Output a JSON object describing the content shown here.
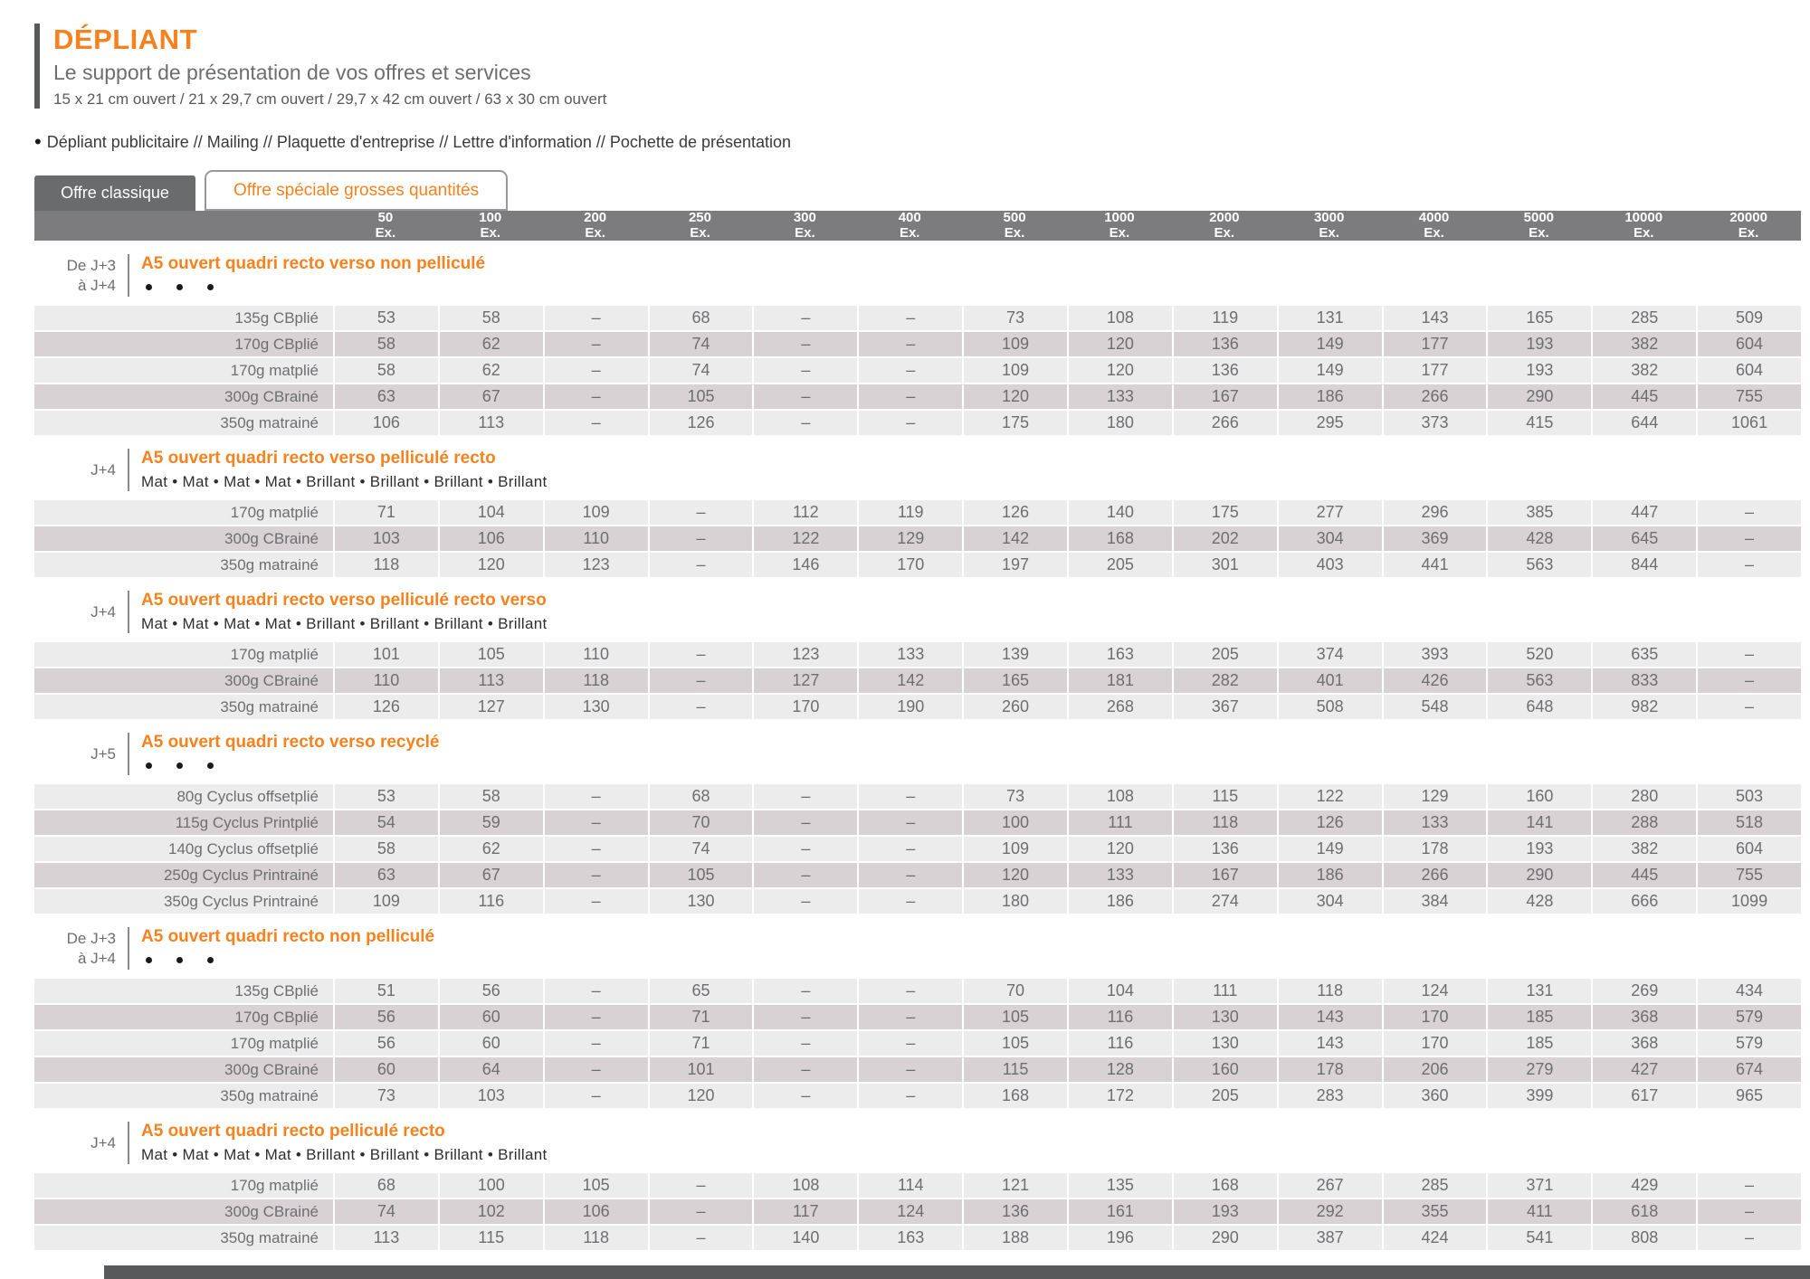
{
  "header": {
    "title": "DÉPLIANT",
    "subtitle": "Le support de présentation de vos offres et services",
    "formats": "15 x 21 cm ouvert / 21 x 29,7 cm ouvert / 29,7 x 42 cm ouvert / 63 x 30 cm ouvert",
    "uses_bullet": "•",
    "uses": "Dépliant publicitaire // Mailing // Plaquette d'entreprise // Lettre d'information // Pochette de présentation"
  },
  "tabs": [
    {
      "label": "Offre classique",
      "active": true
    },
    {
      "label": "Offre spéciale grosses quantités",
      "active": false
    }
  ],
  "columns": [
    "50",
    "100",
    "200",
    "250",
    "300",
    "400",
    "500",
    "1000",
    "2000",
    "3000",
    "4000",
    "5000",
    "10000",
    "20000"
  ],
  "column_unit": "Ex.",
  "sections": [
    {
      "delay": [
        "De J+3",
        "à J+4"
      ],
      "title": "A5 ouvert quadri recto verso non pelliculé",
      "finishes": {
        "type": "dots"
      },
      "rows": [
        {
          "label": "135g CBplié",
          "values": [
            "53",
            "58",
            "–",
            "68",
            "–",
            "–",
            "73",
            "108",
            "119",
            "131",
            "143",
            "165",
            "285",
            "509"
          ]
        },
        {
          "label": "170g CBplié",
          "values": [
            "58",
            "62",
            "–",
            "74",
            "–",
            "–",
            "109",
            "120",
            "136",
            "149",
            "177",
            "193",
            "382",
            "604"
          ]
        },
        {
          "label": "170g matplié",
          "values": [
            "58",
            "62",
            "–",
            "74",
            "–",
            "–",
            "109",
            "120",
            "136",
            "149",
            "177",
            "193",
            "382",
            "604"
          ]
        },
        {
          "label": "300g CBrainé",
          "values": [
            "63",
            "67",
            "–",
            "105",
            "–",
            "–",
            "120",
            "133",
            "167",
            "186",
            "266",
            "290",
            "445",
            "755"
          ]
        },
        {
          "label": "350g matrainé",
          "values": [
            "106",
            "113",
            "–",
            "126",
            "–",
            "–",
            "175",
            "180",
            "266",
            "295",
            "373",
            "415",
            "644",
            "1061"
          ]
        }
      ]
    },
    {
      "delay": [
        "J+4"
      ],
      "title": "A5 ouvert quadri recto verso pelliculé recto",
      "finishes": {
        "type": "text",
        "value": "Mat • Mat • Mat • Mat • Brillant • Brillant • Brillant • Brillant"
      },
      "rows": [
        {
          "label": "170g matplié",
          "values": [
            "71",
            "104",
            "109",
            "–",
            "112",
            "119",
            "126",
            "140",
            "175",
            "277",
            "296",
            "385",
            "447",
            "–"
          ]
        },
        {
          "label": "300g CBrainé",
          "values": [
            "103",
            "106",
            "110",
            "–",
            "122",
            "129",
            "142",
            "168",
            "202",
            "304",
            "369",
            "428",
            "645",
            "–"
          ]
        },
        {
          "label": "350g matrainé",
          "values": [
            "118",
            "120",
            "123",
            "–",
            "146",
            "170",
            "197",
            "205",
            "301",
            "403",
            "441",
            "563",
            "844",
            "–"
          ]
        }
      ]
    },
    {
      "delay": [
        "J+4"
      ],
      "title": "A5 ouvert quadri recto verso pelliculé recto verso",
      "finishes": {
        "type": "text",
        "value": "Mat • Mat • Mat • Mat • Brillant • Brillant • Brillant • Brillant"
      },
      "rows": [
        {
          "label": "170g matplié",
          "values": [
            "101",
            "105",
            "110",
            "–",
            "123",
            "133",
            "139",
            "163",
            "205",
            "374",
            "393",
            "520",
            "635",
            "–"
          ]
        },
        {
          "label": "300g CBrainé",
          "values": [
            "110",
            "113",
            "118",
            "–",
            "127",
            "142",
            "165",
            "181",
            "282",
            "401",
            "426",
            "563",
            "833",
            "–"
          ]
        },
        {
          "label": "350g matrainé",
          "values": [
            "126",
            "127",
            "130",
            "–",
            "170",
            "190",
            "260",
            "268",
            "367",
            "508",
            "548",
            "648",
            "982",
            "–"
          ]
        }
      ]
    },
    {
      "delay": [
        "J+5"
      ],
      "title": "A5 ouvert quadri recto verso recyclé",
      "finishes": {
        "type": "dots"
      },
      "rows": [
        {
          "label": "80g Cyclus offsetplié",
          "values": [
            "53",
            "58",
            "–",
            "68",
            "–",
            "–",
            "73",
            "108",
            "115",
            "122",
            "129",
            "160",
            "280",
            "503"
          ]
        },
        {
          "label": "115g Cyclus Printplié",
          "values": [
            "54",
            "59",
            "–",
            "70",
            "–",
            "–",
            "100",
            "111",
            "118",
            "126",
            "133",
            "141",
            "288",
            "518"
          ]
        },
        {
          "label": "140g Cyclus offsetplié",
          "values": [
            "58",
            "62",
            "–",
            "74",
            "–",
            "–",
            "109",
            "120",
            "136",
            "149",
            "178",
            "193",
            "382",
            "604"
          ]
        },
        {
          "label": "250g Cyclus Printrainé",
          "values": [
            "63",
            "67",
            "–",
            "105",
            "–",
            "–",
            "120",
            "133",
            "167",
            "186",
            "266",
            "290",
            "445",
            "755"
          ]
        },
        {
          "label": "350g Cyclus Printrainé",
          "values": [
            "109",
            "116",
            "–",
            "130",
            "–",
            "–",
            "180",
            "186",
            "274",
            "304",
            "384",
            "428",
            "666",
            "1099"
          ]
        }
      ]
    },
    {
      "delay": [
        "De J+3",
        "à J+4"
      ],
      "title": "A5 ouvert quadri recto non pelliculé",
      "finishes": {
        "type": "dots"
      },
      "rows": [
        {
          "label": "135g CBplié",
          "values": [
            "51",
            "56",
            "–",
            "65",
            "–",
            "–",
            "70",
            "104",
            "111",
            "118",
            "124",
            "131",
            "269",
            "434"
          ]
        },
        {
          "label": "170g CBplié",
          "values": [
            "56",
            "60",
            "–",
            "71",
            "–",
            "–",
            "105",
            "116",
            "130",
            "143",
            "170",
            "185",
            "368",
            "579"
          ]
        },
        {
          "label": "170g matplié",
          "values": [
            "56",
            "60",
            "–",
            "71",
            "–",
            "–",
            "105",
            "116",
            "130",
            "143",
            "170",
            "185",
            "368",
            "579"
          ]
        },
        {
          "label": "300g CBrainé",
          "values": [
            "60",
            "64",
            "–",
            "101",
            "–",
            "–",
            "115",
            "128",
            "160",
            "178",
            "206",
            "279",
            "427",
            "674"
          ]
        },
        {
          "label": "350g matrainé",
          "values": [
            "73",
            "103",
            "–",
            "120",
            "–",
            "–",
            "168",
            "172",
            "205",
            "283",
            "360",
            "399",
            "617",
            "965"
          ]
        }
      ]
    },
    {
      "delay": [
        "J+4"
      ],
      "title": "A5 ouvert quadri recto pelliculé recto",
      "finishes": {
        "type": "text",
        "value": "Mat • Mat • Mat • Mat • Brillant • Brillant • Brillant • Brillant"
      },
      "rows": [
        {
          "label": "170g matplié",
          "values": [
            "68",
            "100",
            "105",
            "–",
            "108",
            "114",
            "121",
            "135",
            "168",
            "267",
            "285",
            "371",
            "429",
            "–"
          ]
        },
        {
          "label": "300g CBrainé",
          "values": [
            "74",
            "102",
            "106",
            "–",
            "117",
            "124",
            "136",
            "161",
            "193",
            "292",
            "355",
            "411",
            "618",
            "–"
          ]
        },
        {
          "label": "350g matrainé",
          "values": [
            "113",
            "115",
            "118",
            "–",
            "140",
            "163",
            "188",
            "196",
            "290",
            "387",
            "424",
            "541",
            "808",
            "–"
          ]
        }
      ]
    }
  ],
  "colors": {
    "accent_orange": "#F5821E",
    "dark_gray": "#58595B",
    "tab_gray": "#6A6B6C",
    "header_bar_gray": "#7C7C7E",
    "row_light": "#ECECED",
    "row_dark": "#D9D2D5"
  }
}
